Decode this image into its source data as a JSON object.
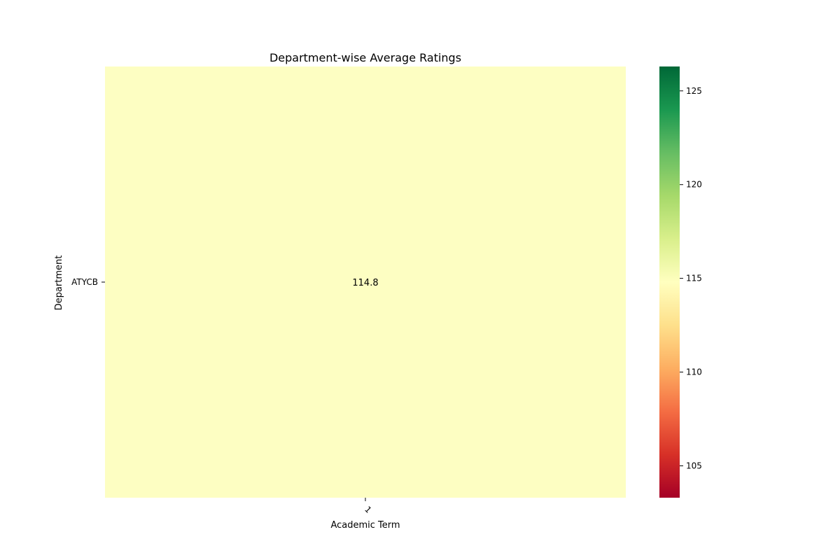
{
  "chart_data": {
    "type": "heatmap",
    "title": "Department-wise Average Ratings",
    "xlabel": "Academic Term",
    "ylabel": "Department",
    "x_categories": [
      "1"
    ],
    "y_categories": [
      "ATYCB"
    ],
    "values": [
      [
        114.8
      ]
    ],
    "annotations": [
      [
        "114.8"
      ]
    ],
    "colormap": "RdYlGn",
    "colorbar": {
      "range": [
        103.3,
        126.3
      ],
      "ticks": [
        105,
        110,
        115,
        120,
        125
      ],
      "tick_labels": [
        "105",
        "110",
        "115",
        "120",
        "125"
      ]
    },
    "cell_color": "#fdfec2"
  }
}
